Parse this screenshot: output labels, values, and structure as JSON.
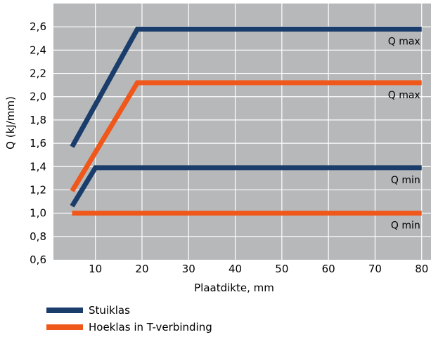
{
  "chart_data": {
    "type": "line",
    "ylabel": "Q (kJ/mm)",
    "xlabel": "Plaatdikte, mm",
    "xlim": [
      1,
      82
    ],
    "ylim": [
      0.6,
      2.8
    ],
    "x_ticks": [
      10,
      20,
      30,
      40,
      50,
      60,
      70,
      80
    ],
    "y_ticks": [
      0.6,
      0.8,
      1.0,
      1.2,
      1.4,
      1.6,
      1.8,
      2.0,
      2.2,
      2.4,
      2.6
    ],
    "y_tick_labels": [
      "0,6",
      "0,8",
      "1,0",
      "1,2",
      "1,4",
      "1,6",
      "1,8",
      "2,0",
      "2,2",
      "2,4",
      "2,6"
    ],
    "x_tick_labels": [
      "10",
      "20",
      "30",
      "40",
      "50",
      "60",
      "70",
      "80"
    ],
    "grid": true,
    "legend_placement": "bottom-left",
    "series": [
      {
        "name": "Stuiklas",
        "annotation": "Q max",
        "color": "#1b3d6b",
        "points": [
          [
            5,
            1.57
          ],
          [
            19,
            2.58
          ],
          [
            80,
            2.58
          ]
        ]
      },
      {
        "name": "Hoeklas in T-verbinding",
        "annotation": "Q max",
        "color": "#f0571a",
        "points": [
          [
            5,
            1.19
          ],
          [
            19,
            2.12
          ],
          [
            80,
            2.12
          ]
        ]
      },
      {
        "name": "Stuiklas",
        "annotation": "Q min",
        "color": "#1b3d6b",
        "points": [
          [
            5,
            1.06
          ],
          [
            10,
            1.39
          ],
          [
            80,
            1.39
          ]
        ]
      },
      {
        "name": "Hoeklas in T-verbinding",
        "annotation": "Q min",
        "color": "#f0571a",
        "points": [
          [
            5,
            1.0
          ],
          [
            80,
            1.0
          ]
        ]
      }
    ],
    "annotations": [
      {
        "text": "Q max",
        "x": 80,
        "y": 2.58
      },
      {
        "text": "Q max",
        "x": 80,
        "y": 2.12
      },
      {
        "text": "Q min",
        "x": 80,
        "y": 1.39
      },
      {
        "text": "Q min",
        "x": 80,
        "y": 1.0
      }
    ]
  },
  "legend": {
    "items": [
      {
        "label": "Stuiklas",
        "color": "#1b3d6b"
      },
      {
        "label": "Hoeklas in T-verbinding",
        "color": "#f0571a"
      }
    ]
  },
  "colors": {
    "plot_background": "#b7b8ba",
    "grid": "#ffffff"
  }
}
